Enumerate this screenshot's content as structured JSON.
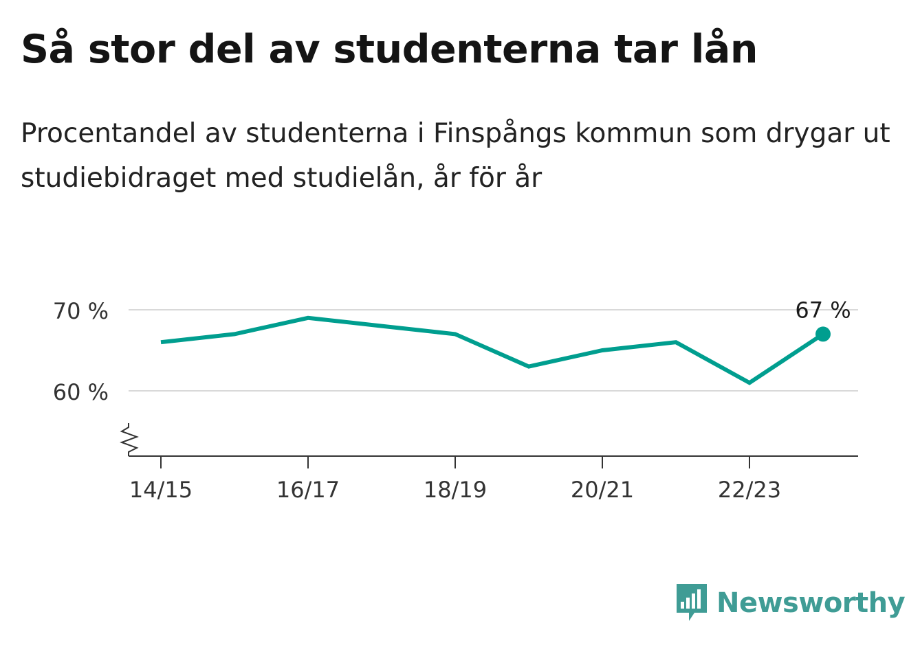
{
  "title": "Så stor del av studenterna tar lån",
  "subtitle": "Procentandel av studenterna i Finspångs kommun som drygar ut studiebidraget med studielån, år för år",
  "brand": {
    "name": "Newsworthy",
    "color": "#3f9c95"
  },
  "chart_data": {
    "type": "line",
    "x": [
      "14/15",
      "15/16",
      "16/17",
      "17/18",
      "18/19",
      "19/20",
      "20/21",
      "21/22",
      "22/23",
      "23/24"
    ],
    "series": [
      {
        "values": [
          66,
          67,
          69,
          68,
          67,
          63,
          65,
          66,
          61,
          67
        ],
        "color": "#009e8f"
      }
    ],
    "x_tick_labels": [
      "14/15",
      "16/17",
      "18/19",
      "20/21",
      "22/23"
    ],
    "y_ticks": [
      60,
      70
    ],
    "y_tick_labels": [
      "60 %",
      "70 %"
    ],
    "ylim": [
      52,
      70
    ],
    "axis_break": true,
    "grid": true,
    "end_label": "67 %"
  }
}
